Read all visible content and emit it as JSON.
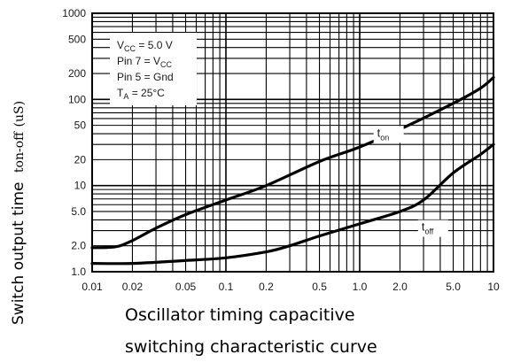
{
  "chart_data": {
    "type": "line",
    "title": "",
    "xlabel": "Oscillator timing capacitive",
    "caption": "switching characteristic curve",
    "ylabel": "Switch output time",
    "ylabel_symbol": "ton-off",
    "ylabel_unit": "(uS)",
    "xscale": "log",
    "yscale": "log",
    "xlim": [
      0.01,
      10
    ],
    "ylim": [
      1.0,
      1000
    ],
    "grid": true,
    "x_ticks": [
      0.01,
      0.02,
      0.05,
      0.1,
      0.2,
      0.5,
      1.0,
      2.0,
      5.0,
      10
    ],
    "x_tick_labels": [
      "0.01",
      "0.02",
      "0.05",
      "0.1",
      "0.2",
      "0.5",
      "1.0",
      "2.0",
      "5.0",
      "10"
    ],
    "y_ticks": [
      1.0,
      2.0,
      5.0,
      10,
      20,
      50,
      100,
      200,
      500,
      1000
    ],
    "y_tick_labels": [
      "1.0",
      "2.0",
      "5.0",
      "10",
      "20",
      "50",
      "100",
      "200",
      "500",
      "1000"
    ],
    "conditions": [
      {
        "main": "V",
        "sub": "CC",
        "rest": " = 5.0 V"
      },
      {
        "main": "Pin 7 = V",
        "sub": "CC",
        "rest": ""
      },
      {
        "main": "Pin 5 = Gnd",
        "sub": "",
        "rest": ""
      },
      {
        "main": "T",
        "sub": "A",
        "rest": " = 25°C"
      }
    ],
    "series": [
      {
        "label_main": "t",
        "label_sub": "on",
        "label_at": [
          1.35,
          37
        ],
        "x": [
          0.01,
          0.015,
          0.02,
          0.03,
          0.05,
          0.1,
          0.2,
          0.5,
          1.0,
          2.0,
          5.0,
          8.0,
          10
        ],
        "y": [
          1.9,
          1.95,
          2.3,
          3.2,
          4.6,
          6.8,
          10,
          19,
          28,
          45,
          90,
          135,
          180
        ]
      },
      {
        "label_main": "t",
        "label_sub": "off",
        "label_at": [
          2.9,
          3.0
        ],
        "x": [
          0.01,
          0.02,
          0.05,
          0.1,
          0.2,
          0.3,
          0.5,
          1.0,
          2.0,
          3.0,
          5.0,
          8.0,
          10
        ],
        "y": [
          1.25,
          1.25,
          1.35,
          1.45,
          1.7,
          2.0,
          2.6,
          3.6,
          5.0,
          6.8,
          14,
          23,
          30
        ]
      }
    ]
  }
}
